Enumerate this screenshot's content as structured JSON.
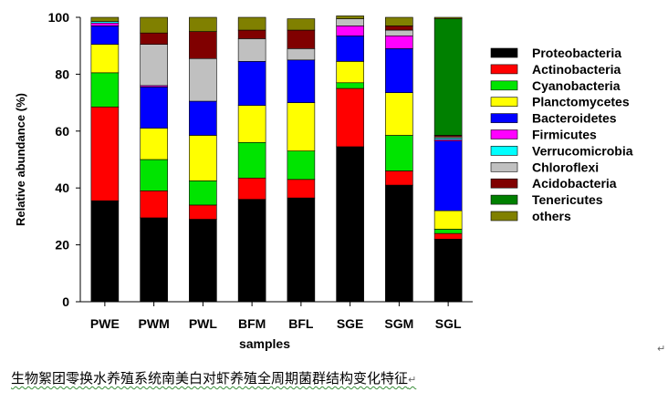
{
  "chart_data": {
    "type": "bar",
    "stacked": true,
    "xlabel": "samples",
    "ylabel": "Relative abundance (%)",
    "ylim": [
      0,
      100
    ],
    "yticks": [
      0,
      20,
      40,
      60,
      80,
      100
    ],
    "grid": false,
    "legend_position": "right",
    "categories": [
      "PWE",
      "PWM",
      "PWL",
      "BFM",
      "BFL",
      "SGE",
      "SGM",
      "SGL"
    ],
    "series": [
      {
        "name": "Proteobacteria",
        "color": "#000000",
        "values": [
          35.5,
          29.5,
          29,
          36,
          36.5,
          54.5,
          41,
          22
        ]
      },
      {
        "name": "Actinobacteria",
        "color": "#ff0000",
        "values": [
          33,
          9.5,
          5,
          7.5,
          6.5,
          20.5,
          5,
          2
        ]
      },
      {
        "name": "Cyanobacteria",
        "color": "#00e400",
        "values": [
          12,
          11,
          8.5,
          12.5,
          10,
          2,
          12.5,
          1.5
        ]
      },
      {
        "name": "Planctomycetes",
        "color": "#ffff00",
        "values": [
          10,
          11,
          16,
          13,
          17,
          7.5,
          15,
          6.5
        ]
      },
      {
        "name": "Bacteroidetes",
        "color": "#0000ff",
        "values": [
          6.5,
          14.5,
          12,
          15.5,
          15,
          9,
          15.5,
          24.5
        ]
      },
      {
        "name": "Firmicutes",
        "color": "#ff00ff",
        "values": [
          1,
          0.5,
          0,
          0,
          0,
          3.5,
          4.5,
          0.5
        ]
      },
      {
        "name": "Verrucomicrobia",
        "color": "#00ffff",
        "values": [
          0.5,
          0,
          0,
          0,
          0,
          0,
          0,
          0.5
        ]
      },
      {
        "name": "Chloroflexi",
        "color": "#c0c0c0",
        "values": [
          0,
          14.5,
          15,
          8,
          4,
          2.5,
          2,
          0.5
        ]
      },
      {
        "name": "Acidobacteria",
        "color": "#800000",
        "values": [
          0,
          4,
          9.5,
          3,
          6.5,
          0,
          1.5,
          0.5
        ]
      },
      {
        "name": "Tenericutes",
        "color": "#008000",
        "values": [
          0,
          0,
          0,
          0,
          0,
          0,
          0,
          41
        ]
      },
      {
        "name": "others",
        "color": "#808000",
        "values": [
          1.5,
          5.5,
          5,
          4.5,
          4,
          1,
          3,
          0.5
        ]
      }
    ]
  },
  "caption": "生物絮团零换水养殖系统南美白对虾养殖全周期菌群结构变化特征",
  "paragraph_mark": "↵"
}
